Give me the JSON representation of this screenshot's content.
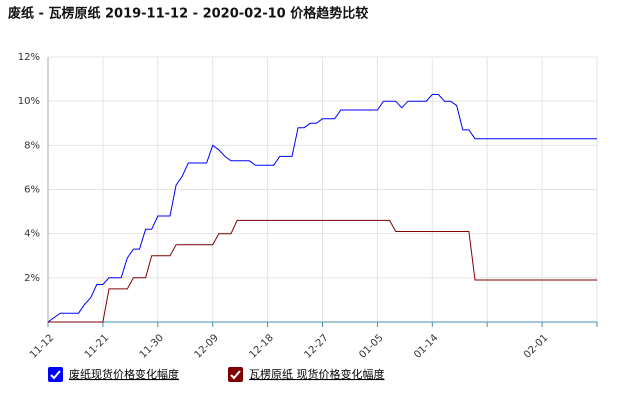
{
  "chart_data": {
    "type": "line",
    "title": "废纸 - 瓦楞原纸 2019-11-12 - 2020-02-10 价格趋势比较",
    "categories": [
      "11-12",
      null,
      null,
      null,
      null,
      null,
      null,
      null,
      null,
      "11-21",
      null,
      null,
      null,
      null,
      null,
      null,
      null,
      null,
      "11-30",
      null,
      null,
      null,
      null,
      null,
      null,
      null,
      null,
      "12-09",
      null,
      null,
      null,
      null,
      null,
      null,
      null,
      null,
      "12-18",
      null,
      null,
      null,
      null,
      null,
      null,
      null,
      null,
      "12-27",
      null,
      null,
      null,
      null,
      null,
      null,
      null,
      null,
      "01-05",
      null,
      null,
      null,
      null,
      null,
      null,
      null,
      null,
      "01-14",
      null,
      null,
      null,
      null,
      null,
      null,
      null,
      null,
      null,
      null,
      null,
      null,
      null,
      null,
      null,
      null,
      null,
      "02-01",
      null,
      null,
      null,
      null,
      null,
      null,
      null,
      null,
      null
    ],
    "series": [
      {
        "name": "废纸现货价格变化幅度",
        "color": "#0000ff",
        "values": [
          0,
          0.2,
          0.4,
          0.4,
          0.4,
          0.4,
          0.8,
          1.1,
          1.7,
          1.7,
          2.0,
          2.0,
          2.0,
          2.9,
          3.3,
          3.3,
          4.2,
          4.2,
          4.8,
          4.8,
          4.8,
          6.2,
          6.6,
          7.2,
          7.2,
          7.2,
          7.2,
          8.0,
          7.8,
          7.5,
          7.3,
          7.3,
          7.3,
          7.3,
          7.1,
          7.1,
          7.1,
          7.1,
          7.5,
          7.5,
          7.5,
          8.8,
          8.8,
          9.0,
          9.0,
          9.2,
          9.2,
          9.2,
          9.6,
          9.6,
          9.6,
          9.6,
          9.6,
          9.6,
          9.6,
          10.0,
          10.0,
          10.0,
          9.7,
          10.0,
          10.0,
          10.0,
          10.0,
          10.3,
          10.3,
          10.0,
          10.0,
          9.8,
          8.7,
          8.7,
          8.3,
          8.3,
          8.3,
          8.3,
          8.3,
          8.3,
          8.3,
          8.3,
          8.3,
          8.3,
          8.3,
          8.3,
          8.3,
          8.3,
          8.3,
          8.3,
          8.3,
          8.3,
          8.3,
          8.3,
          8.3
        ]
      },
      {
        "name": "瓦楞原纸 现货价格变化幅度",
        "color": "#800000",
        "values": [
          0,
          0,
          0,
          0,
          0,
          0,
          0,
          0,
          0,
          0,
          1.5,
          1.5,
          1.5,
          1.5,
          2.0,
          2.0,
          2.0,
          3.0,
          3.0,
          3.0,
          3.0,
          3.5,
          3.5,
          3.5,
          3.5,
          3.5,
          3.5,
          3.5,
          4.0,
          4.0,
          4.0,
          4.6,
          4.6,
          4.6,
          4.6,
          4.6,
          4.6,
          4.6,
          4.6,
          4.6,
          4.6,
          4.6,
          4.6,
          4.6,
          4.6,
          4.6,
          4.6,
          4.6,
          4.6,
          4.6,
          4.6,
          4.6,
          4.6,
          4.6,
          4.6,
          4.6,
          4.6,
          4.1,
          4.1,
          4.1,
          4.1,
          4.1,
          4.1,
          4.1,
          4.1,
          4.1,
          4.1,
          4.1,
          4.1,
          4.1,
          1.9,
          1.9,
          1.9,
          1.9,
          1.9,
          1.9,
          1.9,
          1.9,
          1.9,
          1.9,
          1.9,
          1.9,
          1.9,
          1.9,
          1.9,
          1.9,
          1.9,
          1.9,
          1.9,
          1.9,
          1.9
        ]
      }
    ],
    "ylim": [
      0,
      12
    ],
    "yticks": [
      {
        "value": 2,
        "label": "2%"
      },
      {
        "value": 4,
        "label": "4%"
      },
      {
        "value": 6,
        "label": "6%"
      },
      {
        "value": 8,
        "label": "8%"
      },
      {
        "value": 10,
        "label": "10%"
      },
      {
        "value": 12,
        "label": "12%"
      }
    ],
    "grid": true
  }
}
